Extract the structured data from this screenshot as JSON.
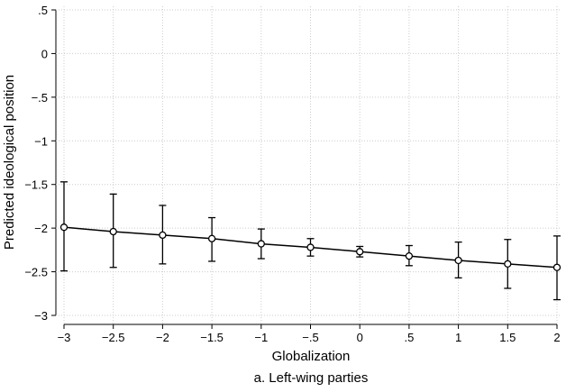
{
  "chart_data": {
    "type": "line",
    "caption": "a. Left-wing parties",
    "xlabel": "Globalization",
    "ylabel": "Predicted ideological position",
    "x": [
      -3,
      -2.5,
      -2,
      -1.5,
      -1,
      -0.5,
      0,
      0.5,
      1,
      1.5,
      2
    ],
    "series": [
      {
        "color": "#000000",
        "values": [
          -1.99,
          -2.04,
          -2.08,
          -2.12,
          -2.18,
          -2.22,
          -2.27,
          -2.32,
          -2.37,
          -2.41,
          -2.45
        ],
        "lower": [
          -2.49,
          -2.45,
          -2.41,
          -2.38,
          -2.35,
          -2.32,
          -2.33,
          -2.43,
          -2.57,
          -2.69,
          -2.82
        ],
        "upper": [
          -1.47,
          -1.61,
          -1.74,
          -1.88,
          -2.01,
          -2.12,
          -2.21,
          -2.2,
          -2.16,
          -2.13,
          -2.09
        ]
      }
    ],
    "xlim": [
      -3,
      2
    ],
    "ylim": [
      -3,
      0.5
    ],
    "xticks": [
      {
        "value": -3,
        "label": "−3"
      },
      {
        "value": -2.5,
        "label": "−2.5"
      },
      {
        "value": -2,
        "label": "−2"
      },
      {
        "value": -1.5,
        "label": "−1.5"
      },
      {
        "value": -1,
        "label": "−1"
      },
      {
        "value": -0.5,
        "label": "−.5"
      },
      0,
      {
        "value": 0.5,
        "label": ".5"
      },
      1,
      1.5,
      2
    ],
    "yticks": [
      {
        "value": 0.5,
        "label": ".5"
      },
      0,
      {
        "value": -0.5,
        "label": "−.5"
      },
      {
        "value": -1,
        "label": "−1"
      },
      {
        "value": -1.5,
        "label": "−1.5"
      },
      {
        "value": -2,
        "label": "−2"
      },
      {
        "value": -2.5,
        "label": "−2.5"
      },
      {
        "value": -3,
        "label": "−3"
      }
    ],
    "grid": true
  }
}
